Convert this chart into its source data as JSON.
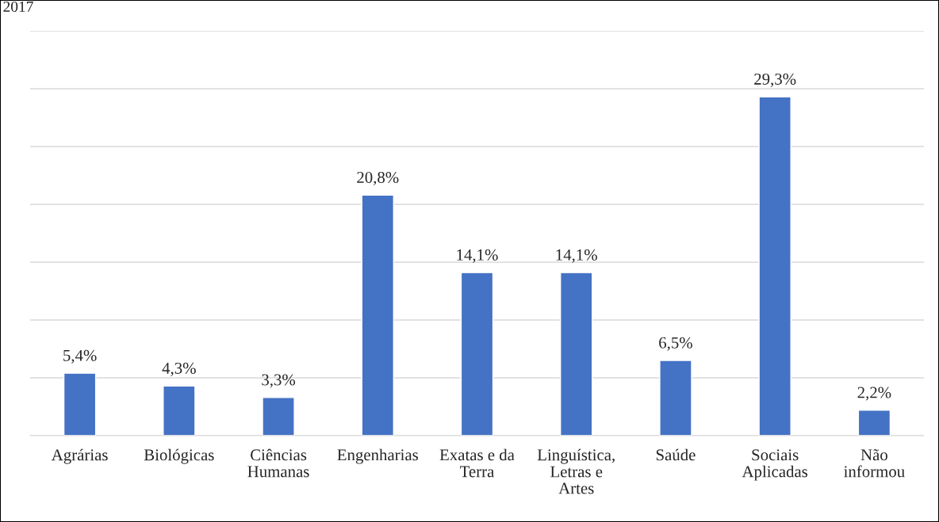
{
  "chart_data": {
    "type": "bar",
    "title": "2017",
    "categories": [
      "Agrárias",
      "Biológicas",
      "Ciências\nHumanas",
      "Engenharias",
      "Exatas e da\nTerra",
      "Linguística,\nLetras e\nArtes",
      "Saúde",
      "Sociais\nAplicadas",
      "Não\ninformou"
    ],
    "values": [
      5.4,
      4.3,
      3.3,
      20.8,
      14.1,
      14.1,
      6.5,
      29.3,
      2.2
    ],
    "value_labels": [
      "5,4%",
      "4,3%",
      "3,3%",
      "20,8%",
      "14,1%",
      "14,1%",
      "6,5%",
      "29,3%",
      "2,2%"
    ],
    "color": "#4472c4",
    "ylim": [
      0,
      35
    ],
    "yticks": [
      {
        "value": 0,
        "label": null
      },
      {
        "value": 5,
        "label": null
      },
      {
        "value": 10,
        "label": null
      },
      {
        "value": 15,
        "label": null
      },
      {
        "value": 20,
        "label": null
      },
      {
        "value": 25,
        "label": null
      },
      {
        "value": 30,
        "label": null
      },
      {
        "value": 35,
        "label": null
      }
    ],
    "tick_labels": "x",
    "grid": "y",
    "legend": false
  }
}
